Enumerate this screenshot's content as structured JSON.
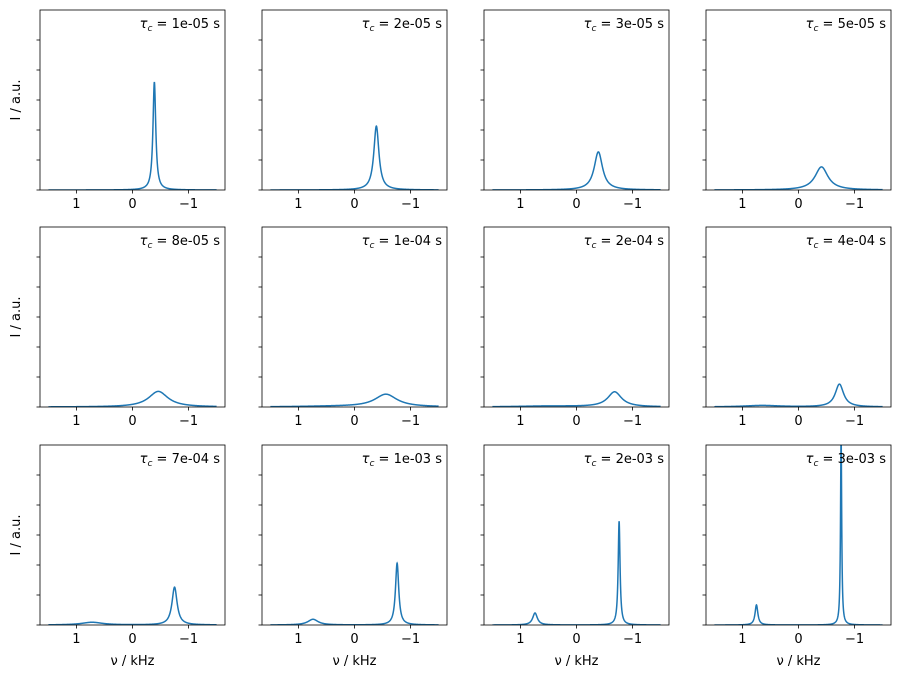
{
  "chart_data": {
    "type": "line",
    "layout": "3x4 grid of subplots",
    "xlabel": "ν / kHz",
    "ylabel": "I / a.u.",
    "xlim": [
      1.65,
      -1.65
    ],
    "x_reversed": true,
    "ylim": [
      0,
      6
    ],
    "x_ticks": [
      1,
      0,
      -1
    ],
    "x_tick_labels": [
      "1",
      "0",
      "−1"
    ],
    "y_ticks": [
      0,
      1,
      2,
      3,
      4,
      5
    ],
    "y_tick_labels_shown": false,
    "x_data_range": [
      -1.5,
      1.5
    ],
    "line_color": "#1f77b4",
    "grid": false,
    "peak_shape": "lorentzian",
    "panels": [
      {
        "label_prefix": "τ",
        "label_sub": "c",
        "label_value": " = 1e-05 s",
        "peaks": [
          {
            "center": -0.39,
            "height": 3.6,
            "fwhm": 0.06
          }
        ]
      },
      {
        "label_prefix": "τ",
        "label_sub": "c",
        "label_value": " = 2e-05 s",
        "peaks": [
          {
            "center": -0.39,
            "height": 2.13,
            "fwhm": 0.11
          }
        ]
      },
      {
        "label_prefix": "τ",
        "label_sub": "c",
        "label_value": " = 3e-05 s",
        "peaks": [
          {
            "center": -0.39,
            "height": 1.27,
            "fwhm": 0.18
          }
        ]
      },
      {
        "label_prefix": "τ",
        "label_sub": "c",
        "label_value": " = 5e-05 s",
        "peaks": [
          {
            "center": -0.41,
            "height": 0.77,
            "fwhm": 0.28
          }
        ]
      },
      {
        "label_prefix": "τ",
        "label_sub": "c",
        "label_value": " = 8e-05 s",
        "peaks": [
          {
            "center": -0.46,
            "height": 0.52,
            "fwhm": 0.42
          }
        ]
      },
      {
        "label_prefix": "τ",
        "label_sub": "c",
        "label_value": " = 1e-04 s",
        "peaks": [
          {
            "center": -0.56,
            "height": 0.42,
            "fwhm": 0.48
          },
          {
            "center": 0.4,
            "height": 0.02,
            "fwhm": 1.5
          }
        ]
      },
      {
        "label_prefix": "τ",
        "label_sub": "c",
        "label_value": " = 2e-04 s",
        "peaks": [
          {
            "center": -0.68,
            "height": 0.5,
            "fwhm": 0.3
          },
          {
            "center": 0.5,
            "height": 0.03,
            "fwhm": 1.4
          }
        ]
      },
      {
        "label_prefix": "τ",
        "label_sub": "c",
        "label_value": " = 4e-04 s",
        "peaks": [
          {
            "center": -0.73,
            "height": 0.76,
            "fwhm": 0.18
          },
          {
            "center": 0.65,
            "height": 0.05,
            "fwhm": 0.8
          }
        ]
      },
      {
        "label_prefix": "τ",
        "label_sub": "c",
        "label_value": " = 7e-04 s",
        "peaks": [
          {
            "center": -0.75,
            "height": 1.26,
            "fwhm": 0.11
          },
          {
            "center": 0.72,
            "height": 0.09,
            "fwhm": 0.45
          }
        ]
      },
      {
        "label_prefix": "τ",
        "label_sub": "c",
        "label_value": " = 1e-03 s",
        "peaks": [
          {
            "center": -0.76,
            "height": 2.06,
            "fwhm": 0.07
          },
          {
            "center": 0.74,
            "height": 0.19,
            "fwhm": 0.22
          }
        ]
      },
      {
        "label_prefix": "τ",
        "label_sub": "c",
        "label_value": " = 2e-03 s",
        "peaks": [
          {
            "center": -0.76,
            "height": 3.46,
            "fwhm": 0.04
          },
          {
            "center": 0.74,
            "height": 0.4,
            "fwhm": 0.1
          }
        ]
      },
      {
        "label_prefix": "τ",
        "label_sub": "c",
        "label_value": " = 3e-03 s",
        "peaks": [
          {
            "center": -0.76,
            "height": 6.3,
            "fwhm": 0.025
          },
          {
            "center": 0.75,
            "height": 0.67,
            "fwhm": 0.06
          }
        ]
      }
    ]
  }
}
